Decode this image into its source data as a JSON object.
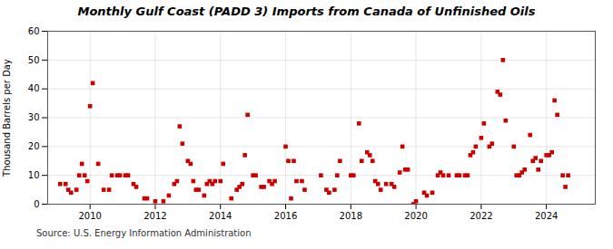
{
  "chart_data": {
    "type": "scatter",
    "title": "Monthly Gulf Coast (PADD 3) Imports from Canada of Unfinished Oils",
    "ylabel": "Thousand Barrels per Day",
    "caption": "Source: U.S. Energy Information Administration",
    "color": "#cc0000",
    "marker": "square",
    "grid": true,
    "xlim": [
      2008.7,
      2025.5
    ],
    "xticks": [
      2010,
      2012,
      2014,
      2016,
      2018,
      2020,
      2022,
      2024
    ],
    "ylim": [
      0,
      60
    ],
    "yticks": [
      0,
      10,
      20,
      30,
      40,
      50,
      60
    ],
    "x": [
      2009.083,
      2009.25,
      2009.333,
      2009.417,
      2009.583,
      2009.667,
      2009.75,
      2009.833,
      2009.917,
      2010.0,
      2010.083,
      2010.25,
      2010.417,
      2010.583,
      2010.667,
      2010.833,
      2010.917,
      2011.083,
      2011.167,
      2011.333,
      2011.417,
      2011.667,
      2011.75,
      2012.0,
      2012.25,
      2012.417,
      2012.583,
      2012.667,
      2012.75,
      2012.833,
      2013.0,
      2013.083,
      2013.167,
      2013.25,
      2013.333,
      2013.5,
      2013.583,
      2013.667,
      2013.75,
      2013.833,
      2014.0,
      2014.083,
      2014.333,
      2014.5,
      2014.583,
      2014.667,
      2014.75,
      2014.833,
      2015.0,
      2015.083,
      2015.25,
      2015.333,
      2015.5,
      2015.583,
      2015.667,
      2016.0,
      2016.083,
      2016.167,
      2016.25,
      2016.333,
      2016.5,
      2016.583,
      2017.083,
      2017.25,
      2017.333,
      2017.5,
      2017.583,
      2017.667,
      2018.0,
      2018.083,
      2018.25,
      2018.333,
      2018.5,
      2018.583,
      2018.667,
      2018.75,
      2018.833,
      2018.917,
      2019.083,
      2019.25,
      2019.333,
      2019.5,
      2019.583,
      2019.667,
      2019.75,
      2019.917,
      2020.0,
      2020.25,
      2020.333,
      2020.5,
      2020.667,
      2020.75,
      2020.833,
      2021.0,
      2021.25,
      2021.333,
      2021.5,
      2021.583,
      2021.667,
      2021.75,
      2021.833,
      2022.0,
      2022.083,
      2022.25,
      2022.333,
      2022.5,
      2022.583,
      2022.667,
      2022.75,
      2023.0,
      2023.083,
      2023.167,
      2023.25,
      2023.333,
      2023.5,
      2023.583,
      2023.667,
      2023.75,
      2023.833,
      2024.0,
      2024.083,
      2024.167,
      2024.25,
      2024.333,
      2024.5,
      2024.583,
      2024.667
    ],
    "values": [
      7,
      7,
      5,
      4,
      5,
      10,
      14,
      10,
      8,
      34,
      42,
      14,
      5,
      5,
      10,
      10,
      10,
      10,
      10,
      7,
      6,
      2,
      2,
      1,
      1,
      3,
      7,
      8,
      27,
      21,
      15,
      14,
      8,
      5,
      5,
      3,
      7,
      8,
      7,
      8,
      8,
      14,
      2,
      5,
      6,
      7,
      17,
      31,
      10,
      10,
      6,
      6,
      8,
      7,
      8,
      20,
      15,
      2,
      15,
      8,
      8,
      5,
      10,
      5,
      4,
      5,
      10,
      15,
      10,
      10,
      28,
      15,
      18,
      17,
      15,
      8,
      7,
      5,
      7,
      7,
      6,
      11,
      20,
      12,
      12,
      0,
      1,
      4,
      3,
      4,
      10,
      11,
      10,
      10,
      10,
      10,
      10,
      10,
      17,
      18,
      20,
      23,
      28,
      20,
      21,
      39,
      38,
      50,
      29,
      20,
      10,
      10,
      11,
      12,
      24,
      15,
      16,
      12,
      15,
      17,
      17,
      18,
      36,
      31,
      10,
      6,
      10
    ]
  }
}
